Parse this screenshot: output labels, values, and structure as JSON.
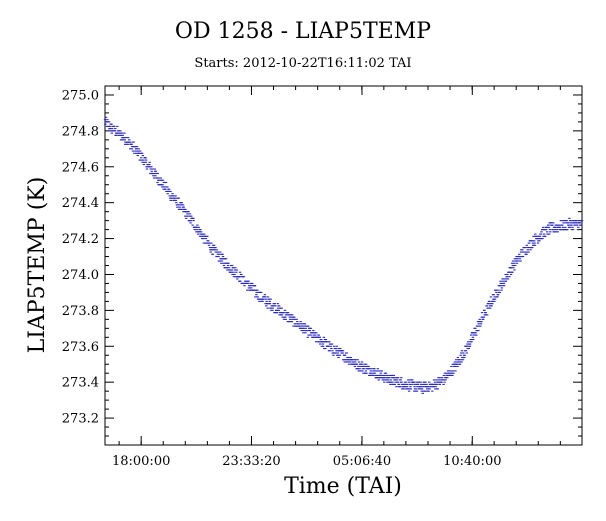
{
  "chart_data": {
    "type": "scatter",
    "title": "OD 1258 - LIAP5TEMP",
    "subtitle": "Starts: 2012-10-22T16:11:02 TAI",
    "xlabel": "Time (TAI)",
    "ylabel": "LIAP5TEMP (K)",
    "x_unit": "hours since start",
    "xlim": [
      0,
      24
    ],
    "ylim": [
      273.05,
      275.05
    ],
    "x_tick_labels": [
      "18:00:00",
      "23:33:20",
      "05:06:40",
      "10:40:00"
    ],
    "x_tick_values": [
      1.82,
      7.37,
      12.93,
      18.48
    ],
    "y_ticks": [
      273.2,
      273.4,
      273.6,
      273.8,
      274.0,
      274.2,
      274.4,
      274.6,
      274.8,
      275.0
    ],
    "y_tick_labels": [
      "273.2",
      "273.4",
      "273.6",
      "273.8",
      "274.0",
      "274.2",
      "274.4",
      "274.6",
      "274.8",
      "275.0"
    ],
    "series": [
      {
        "color": "#2b2bb8",
        "marker": "dash",
        "x": [
          0.0,
          0.5,
          1.0,
          1.5,
          2.0,
          2.5,
          3.0,
          3.5,
          4.0,
          4.5,
          5.0,
          5.5,
          6.0,
          6.5,
          7.0,
          7.5,
          8.0,
          8.5,
          9.0,
          9.5,
          10.0,
          10.5,
          11.0,
          11.5,
          12.0,
          12.5,
          13.0,
          13.5,
          14.0,
          14.5,
          15.0,
          15.5,
          16.0,
          16.5,
          17.0,
          17.5,
          18.0,
          18.5,
          19.0,
          19.5,
          20.0,
          20.5,
          21.0,
          21.5,
          22.0,
          22.5,
          23.0,
          23.5,
          24.0
        ],
        "y": [
          274.85,
          274.8,
          274.76,
          274.7,
          274.63,
          274.56,
          274.49,
          274.42,
          274.35,
          274.28,
          274.2,
          274.13,
          274.07,
          274.02,
          273.96,
          273.91,
          273.86,
          273.82,
          273.78,
          273.74,
          273.7,
          273.66,
          273.62,
          273.58,
          273.55,
          273.51,
          273.48,
          273.46,
          273.43,
          273.41,
          273.39,
          273.38,
          273.37,
          273.38,
          273.41,
          273.47,
          273.55,
          273.65,
          273.76,
          273.86,
          273.95,
          274.04,
          274.12,
          274.18,
          274.23,
          274.26,
          274.27,
          274.28,
          274.28
        ]
      }
    ]
  }
}
